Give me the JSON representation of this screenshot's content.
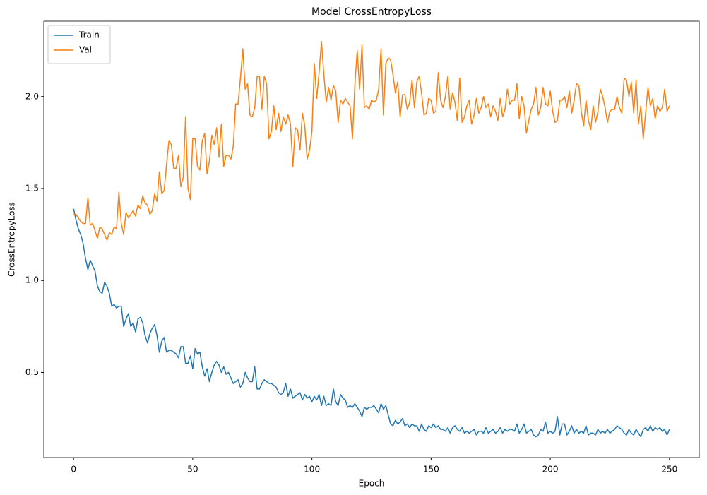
{
  "chart_data": {
    "type": "line",
    "title": "Model CrossEntropyLoss",
    "x_label": "Epoch",
    "y_label": "CrossEntropyLoss",
    "x": [
      0,
      1,
      2,
      3,
      4,
      5,
      6,
      7,
      8,
      9,
      10,
      11,
      12,
      13,
      14,
      15,
      16,
      17,
      18,
      19,
      20,
      21,
      22,
      23,
      24,
      25,
      26,
      27,
      28,
      29,
      30,
      31,
      32,
      33,
      34,
      35,
      36,
      37,
      38,
      39,
      40,
      41,
      42,
      43,
      44,
      45,
      46,
      47,
      48,
      49,
      50,
      51,
      52,
      53,
      54,
      55,
      56,
      57,
      58,
      59,
      60,
      61,
      62,
      63,
      64,
      65,
      66,
      67,
      68,
      69,
      70,
      71,
      72,
      73,
      74,
      75,
      76,
      77,
      78,
      79,
      80,
      81,
      82,
      83,
      84,
      85,
      86,
      87,
      88,
      89,
      90,
      91,
      92,
      93,
      94,
      95,
      96,
      97,
      98,
      99,
      100,
      101,
      102,
      103,
      104,
      105,
      106,
      107,
      108,
      109,
      110,
      111,
      112,
      113,
      114,
      115,
      116,
      117,
      118,
      119,
      120,
      121,
      122,
      123,
      124,
      125,
      126,
      127,
      128,
      129,
      130,
      131,
      132,
      133,
      134,
      135,
      136,
      137,
      138,
      139,
      140,
      141,
      142,
      143,
      144,
      145,
      146,
      147,
      148,
      149,
      150,
      151,
      152,
      153,
      154,
      155,
      156,
      157,
      158,
      159,
      160,
      161,
      162,
      163,
      164,
      165,
      166,
      167,
      168,
      169,
      170,
      171,
      172,
      173,
      174,
      175,
      176,
      177,
      178,
      179,
      180,
      181,
      182,
      183,
      184,
      185,
      186,
      187,
      188,
      189,
      190,
      191,
      192,
      193,
      194,
      195,
      196,
      197,
      198,
      199,
      200,
      201,
      202,
      203,
      204,
      205,
      206,
      207,
      208,
      209,
      210,
      211,
      212,
      213,
      214,
      215,
      216,
      217,
      218,
      219,
      220,
      221,
      222,
      223,
      224,
      225,
      226,
      227,
      228,
      229,
      230,
      231,
      232,
      233,
      234,
      235,
      236,
      237,
      238,
      239,
      240,
      241,
      242,
      243,
      244,
      245,
      246,
      247,
      248,
      249,
      250
    ],
    "series": [
      {
        "name": "Train",
        "color": "#1f77b4",
        "values": [
          1.39,
          1.33,
          1.28,
          1.25,
          1.2,
          1.12,
          1.06,
          1.11,
          1.08,
          1.05,
          0.97,
          0.94,
          0.93,
          0.99,
          0.97,
          0.93,
          0.86,
          0.87,
          0.85,
          0.86,
          0.86,
          0.75,
          0.79,
          0.82,
          0.75,
          0.77,
          0.72,
          0.79,
          0.8,
          0.77,
          0.7,
          0.66,
          0.71,
          0.74,
          0.76,
          0.7,
          0.61,
          0.67,
          0.69,
          0.61,
          0.62,
          0.62,
          0.61,
          0.6,
          0.58,
          0.64,
          0.64,
          0.55,
          0.55,
          0.59,
          0.52,
          0.63,
          0.6,
          0.61,
          0.53,
          0.48,
          0.52,
          0.45,
          0.5,
          0.54,
          0.56,
          0.54,
          0.5,
          0.53,
          0.49,
          0.5,
          0.47,
          0.44,
          0.45,
          0.46,
          0.42,
          0.44,
          0.5,
          0.47,
          0.45,
          0.45,
          0.53,
          0.41,
          0.41,
          0.44,
          0.46,
          0.45,
          0.44,
          0.44,
          0.43,
          0.42,
          0.39,
          0.38,
          0.39,
          0.44,
          0.37,
          0.41,
          0.36,
          0.37,
          0.38,
          0.39,
          0.35,
          0.38,
          0.36,
          0.37,
          0.34,
          0.37,
          0.35,
          0.38,
          0.32,
          0.37,
          0.32,
          0.33,
          0.32,
          0.41,
          0.34,
          0.32,
          0.38,
          0.36,
          0.35,
          0.31,
          0.32,
          0.31,
          0.33,
          0.31,
          0.29,
          0.26,
          0.31,
          0.3,
          0.31,
          0.31,
          0.32,
          0.3,
          0.28,
          0.33,
          0.3,
          0.32,
          0.27,
          0.22,
          0.21,
          0.24,
          0.22,
          0.23,
          0.25,
          0.21,
          0.22,
          0.2,
          0.22,
          0.21,
          0.21,
          0.18,
          0.22,
          0.19,
          0.18,
          0.21,
          0.2,
          0.22,
          0.2,
          0.21,
          0.19,
          0.19,
          0.18,
          0.2,
          0.17,
          0.2,
          0.21,
          0.19,
          0.18,
          0.2,
          0.17,
          0.18,
          0.17,
          0.18,
          0.19,
          0.16,
          0.18,
          0.18,
          0.17,
          0.2,
          0.17,
          0.18,
          0.19,
          0.17,
          0.18,
          0.2,
          0.17,
          0.19,
          0.18,
          0.19,
          0.19,
          0.18,
          0.22,
          0.17,
          0.19,
          0.22,
          0.17,
          0.18,
          0.19,
          0.16,
          0.15,
          0.16,
          0.19,
          0.18,
          0.23,
          0.17,
          0.18,
          0.17,
          0.18,
          0.26,
          0.16,
          0.22,
          0.22,
          0.16,
          0.18,
          0.21,
          0.17,
          0.19,
          0.17,
          0.18,
          0.17,
          0.21,
          0.16,
          0.17,
          0.17,
          0.16,
          0.19,
          0.17,
          0.18,
          0.17,
          0.19,
          0.17,
          0.18,
          0.19,
          0.21,
          0.2,
          0.19,
          0.17,
          0.16,
          0.19,
          0.17,
          0.16,
          0.19,
          0.17,
          0.15,
          0.19,
          0.2,
          0.18,
          0.21,
          0.18,
          0.2,
          0.19,
          0.2,
          0.18,
          0.19,
          0.16,
          0.19
        ]
      },
      {
        "name": "Val",
        "color": "#ff7f0e",
        "values": [
          1.36,
          1.36,
          1.34,
          1.32,
          1.31,
          1.31,
          1.45,
          1.3,
          1.31,
          1.27,
          1.23,
          1.29,
          1.28,
          1.25,
          1.22,
          1.26,
          1.25,
          1.29,
          1.28,
          1.48,
          1.31,
          1.25,
          1.37,
          1.34,
          1.36,
          1.38,
          1.35,
          1.41,
          1.39,
          1.46,
          1.42,
          1.41,
          1.36,
          1.38,
          1.47,
          1.43,
          1.59,
          1.47,
          1.49,
          1.63,
          1.76,
          1.74,
          1.61,
          1.61,
          1.68,
          1.51,
          1.56,
          1.89,
          1.5,
          1.44,
          1.77,
          1.77,
          1.62,
          1.6,
          1.76,
          1.8,
          1.58,
          1.65,
          1.79,
          1.74,
          1.83,
          1.67,
          1.85,
          1.62,
          1.68,
          1.68,
          1.66,
          1.73,
          1.96,
          1.96,
          2.1,
          2.26,
          2.04,
          2.07,
          1.9,
          1.89,
          1.94,
          2.11,
          2.11,
          1.93,
          2.11,
          2.07,
          1.77,
          1.81,
          1.95,
          1.82,
          1.91,
          1.81,
          1.89,
          1.85,
          1.9,
          1.85,
          1.62,
          1.83,
          1.82,
          1.71,
          1.91,
          1.84,
          1.66,
          1.71,
          1.81,
          2.18,
          1.99,
          2.13,
          2.3,
          2.12,
          1.97,
          2.05,
          1.98,
          2.06,
          2.03,
          1.86,
          1.98,
          1.96,
          1.99,
          1.97,
          1.95,
          1.77,
          2.06,
          2.25,
          2.04,
          2.28,
          1.94,
          1.95,
          1.93,
          1.98,
          1.97,
          1.98,
          2.04,
          2.26,
          1.9,
          2.18,
          2.21,
          2.2,
          2.12,
          2.02,
          2.08,
          1.89,
          2.01,
          2.01,
          1.93,
          1.97,
          2.09,
          1.94,
          2.08,
          2.11,
          2.02,
          1.9,
          1.91,
          1.99,
          1.98,
          1.91,
          1.92,
          2.13,
          1.98,
          1.94,
          2.0,
          2.11,
          1.93,
          2.02,
          1.97,
          1.87,
          2.1,
          1.86,
          1.89,
          1.95,
          1.98,
          1.85,
          1.9,
          1.99,
          1.91,
          1.94,
          2.0,
          1.94,
          1.96,
          1.89,
          1.95,
          1.92,
          1.87,
          1.99,
          1.89,
          1.93,
          2.04,
          1.96,
          1.98,
          1.98,
          2.07,
          1.88,
          2.0,
          1.95,
          1.8,
          1.87,
          1.93,
          1.96,
          2.05,
          1.9,
          1.94,
          2.05,
          1.96,
          1.95,
          2.03,
          1.92,
          1.86,
          1.87,
          1.98,
          1.98,
          2.0,
          1.94,
          2.03,
          1.91,
          1.98,
          2.07,
          2.06,
          1.92,
          1.84,
          1.98,
          1.87,
          1.82,
          1.95,
          1.86,
          1.92,
          2.04,
          2.0,
          1.94,
          1.86,
          1.92,
          1.93,
          1.93,
          2.0,
          1.94,
          1.91,
          2.1,
          2.09,
          2.0,
          2.08,
          1.91,
          2.09,
          1.85,
          1.95,
          1.77,
          1.91,
          2.05,
          1.95,
          1.99,
          1.88,
          1.95,
          1.92,
          1.94,
          2.04,
          1.92,
          1.95
        ]
      }
    ],
    "xlim": [
      -12.5,
      262.5
    ],
    "ylim": [
      0.037,
      2.41
    ],
    "xticks": [
      0,
      50,
      100,
      150,
      200,
      250
    ],
    "yticks": [
      0.5,
      {
        "value": 1,
        "label": "1.0"
      },
      1.5,
      {
        "value": 2,
        "label": "2.0"
      }
    ],
    "grid": false,
    "legend": "upper-left"
  }
}
